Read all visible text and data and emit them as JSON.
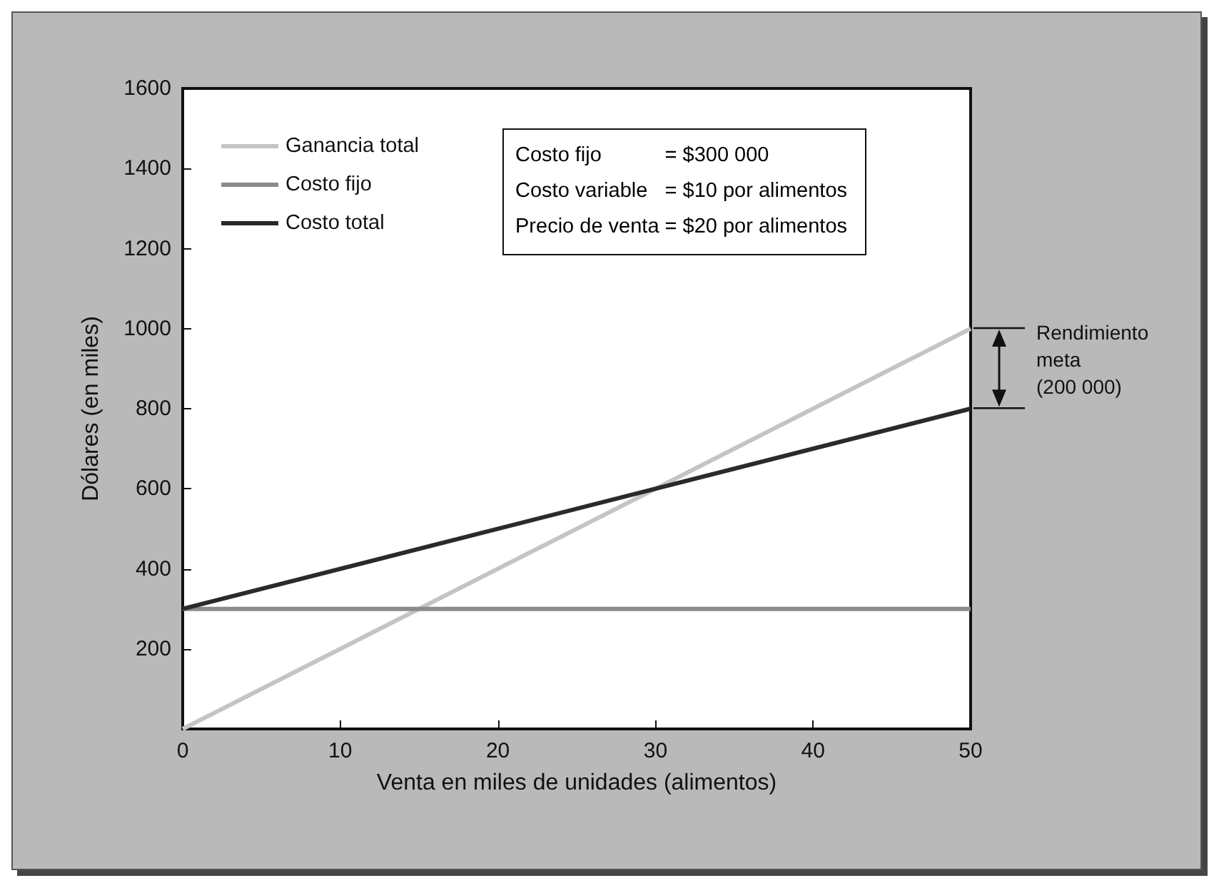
{
  "chart_data": {
    "type": "line",
    "xlabel": "Venta en miles de unidades (alimentos)",
    "ylabel": "Dólares (en miles)",
    "x": [
      0,
      50
    ],
    "series": [
      {
        "name": "Ganancia total",
        "color": "#c4c4c4",
        "values": [
          0,
          1000
        ]
      },
      {
        "name": "Costo fijo",
        "color": "#8a8a8a",
        "values": [
          300,
          300
        ]
      },
      {
        "name": "Costo total",
        "color": "#2a2a2a",
        "values": [
          300,
          800
        ]
      }
    ],
    "xlim": [
      0,
      50
    ],
    "xticks": [
      0,
      10,
      20,
      30,
      40,
      50
    ],
    "ylim": [
      0,
      1600
    ],
    "yticks": [
      200,
      400,
      600,
      800,
      1000,
      1200,
      1400,
      1600
    ],
    "annotations": [
      "Costo fijo = $300 000",
      "Costo variable = $10 por alimentos",
      "Precio de venta = $20 por alimentos",
      "Rendimiento meta (200 000)"
    ],
    "grid": false,
    "legend": "top left",
    "marker": "none",
    "line_style": "solid"
  }
}
